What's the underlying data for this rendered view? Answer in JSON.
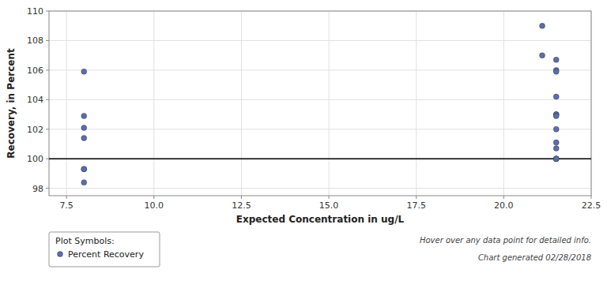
{
  "chart_data": {
    "type": "scatter",
    "x": [
      8.0,
      8.0,
      8.0,
      8.0,
      8.0,
      8.0,
      8.0,
      21.1,
      21.1,
      21.5,
      21.5,
      21.5,
      21.5,
      21.5,
      21.5,
      21.5,
      21.5,
      21.5,
      21.5,
      21.5,
      21.5,
      21.5
    ],
    "series": [
      {
        "name": "Percent Recovery",
        "color": "#5b6ea8",
        "marker": "circle",
        "values": [
          105.9,
          102.9,
          102.1,
          101.4,
          99.3,
          98.4,
          99.3,
          109.0,
          107.0,
          106.7,
          106.0,
          105.9,
          104.2,
          103.0,
          103.0,
          102.9,
          102.0,
          101.1,
          100.7,
          100.0,
          100.0,
          100.0
        ]
      }
    ],
    "hline": {
      "y": 100,
      "color": "#000000"
    },
    "xlim": [
      7.0,
      22.5
    ],
    "ylim": [
      97.5,
      110.0
    ],
    "xticks": [
      7.5,
      {
        "value": 10.0,
        "label": "10.0"
      },
      12.5,
      {
        "value": 15.0,
        "label": "15.0"
      },
      17.5,
      {
        "value": 20.0,
        "label": "20.0"
      },
      22.5
    ],
    "yticks": [
      98,
      100,
      102,
      104,
      106,
      108,
      110
    ],
    "xlabel": "Expected Concentration in ug/L",
    "ylabel": "Recovery, in Percent",
    "grid": true,
    "legend": "bottom left",
    "legend_title": "Plot Symbols:",
    "annotations": [
      "Hover over any data point for detailed info.",
      "Chart generated 02/28/2018"
    ]
  }
}
